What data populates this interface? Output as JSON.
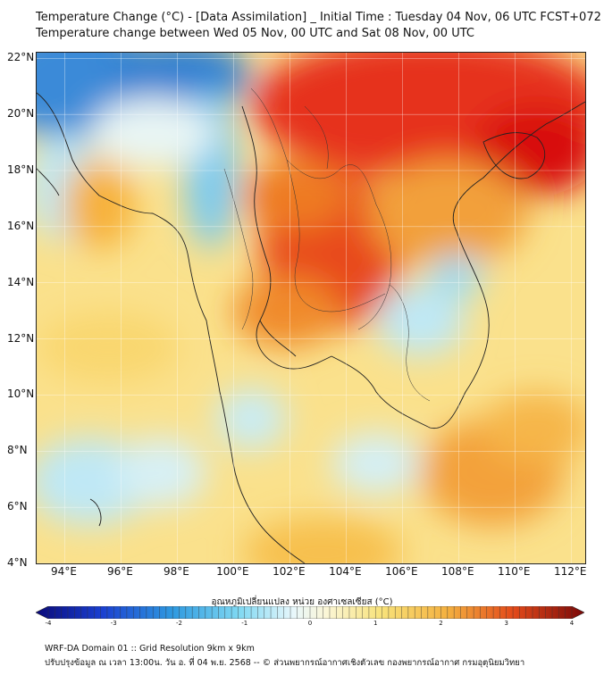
{
  "header": {
    "title_line1": "Temperature Change (°C) - [Data Assimilation] _ Initial Time : Tuesday 04 Nov, 06 UTC FCST+072",
    "title_line2": "Temperature change between Wed 05 Nov, 00 UTC and Sat 08 Nov, 00 UTC"
  },
  "map": {
    "lat_labels": [
      "22°N",
      "20°N",
      "18°N",
      "16°N",
      "14°N",
      "12°N",
      "10°N",
      "8°N",
      "6°N",
      "4°N"
    ],
    "lon_labels": [
      "94°E",
      "96°E",
      "98°E",
      "100°E",
      "102°E",
      "104°E",
      "106°E",
      "108°E",
      "110°E",
      "112°E"
    ],
    "extent": {
      "lon_min": 93,
      "lon_max": 112.5,
      "lat_min": 4,
      "lat_max": 22.2
    },
    "colors": {
      "cold_deep": "#2a7fd4",
      "cold": "#8fd3f0",
      "cool": "#e6f6f9",
      "neutral": "#fbf3c2",
      "warm": "#f8d45a",
      "hot": "#f39a2a",
      "very_hot": "#e8361a",
      "extreme": "#d8100c"
    }
  },
  "colorbar": {
    "title": "อุณหภูมิเปลี่ยนแปลง หน่วย องศาเซลเซียส (°C)",
    "ticks": [
      "-4",
      "-3",
      "-2",
      "-1",
      "0",
      "1",
      "2",
      "3",
      "4"
    ],
    "min": -4,
    "max": 4
  },
  "footer": {
    "line1": "WRF-DA Domain 01 :: Grid Resolution 9km x 9km",
    "line2": "ปรับปรุงข้อมูล ณ เวลา 13:00น. วัน อ. ที่ 04 พ.ย. 2568 -- © ส่วนพยากรณ์อากาศเชิงตัวเลข กองพยากรณ์อากาศ กรมอุตุนิยมวิทยา"
  }
}
